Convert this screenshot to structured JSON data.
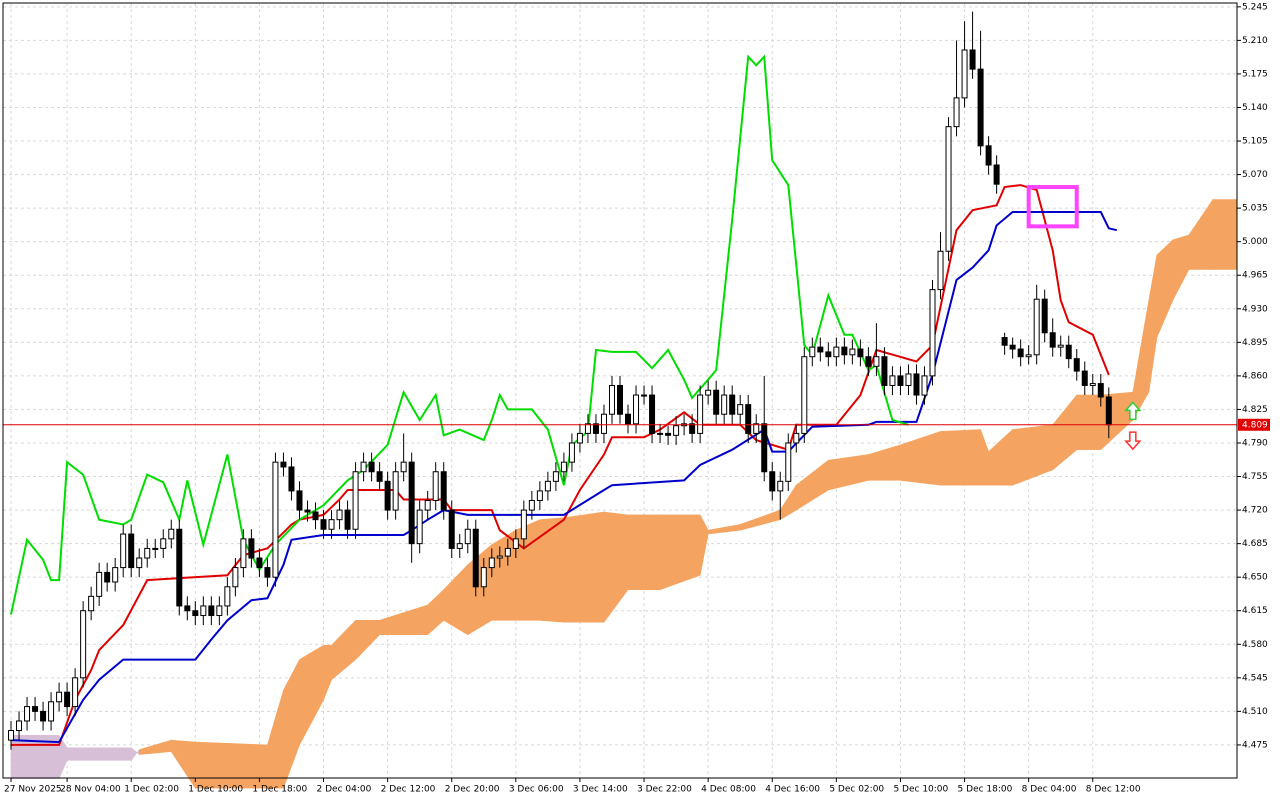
{
  "chart_data": {
    "type": "candlestick",
    "xlim": [
      -1,
      153
    ],
    "ylim": [
      4.4405,
      5.249
    ],
    "grid": true,
    "yticks": [
      5.245,
      {
        "value": 5.21,
        "label": "5.210"
      },
      5.175,
      {
        "value": 5.14,
        "label": "5.140"
      },
      5.105,
      {
        "value": 5.07,
        "label": "5.070"
      },
      5.035,
      {
        "value": 5,
        "label": "5.000"
      },
      4.965,
      {
        "value": 4.93,
        "label": "4.930"
      },
      4.895,
      {
        "value": 4.86,
        "label": "4.860"
      },
      4.825,
      {
        "value": 4.79,
        "label": "4.790"
      },
      4.755,
      {
        "value": 4.72,
        "label": "4.720"
      },
      4.685,
      {
        "value": 4.65,
        "label": "4.650"
      },
      4.615,
      {
        "value": 4.58,
        "label": "4.580"
      },
      4.545,
      {
        "value": 4.51,
        "label": "4.510"
      },
      4.475
    ],
    "xticks": [
      {
        "value": 0,
        "label": "27 Nov 2025"
      },
      {
        "value": 7,
        "label": "28 Nov 04:00"
      },
      {
        "value": 15,
        "label": "1 Dec 02:00"
      },
      {
        "value": 23,
        "label": "1 Dec 10:00"
      },
      {
        "value": 31,
        "label": "1 Dec 18:00"
      },
      {
        "value": 39,
        "label": "2 Dec 04:00"
      },
      {
        "value": 47,
        "label": "2 Dec 12:00"
      },
      {
        "value": 55,
        "label": "2 Dec 20:00"
      },
      {
        "value": 63,
        "label": "3 Dec 06:00"
      },
      {
        "value": 71,
        "label": "3 Dec 14:00"
      },
      {
        "value": 79,
        "label": "3 Dec 22:00"
      },
      {
        "value": 87,
        "label": "4 Dec 08:00"
      },
      {
        "value": 95,
        "label": "4 Dec 16:00"
      },
      {
        "value": 103,
        "label": "5 Dec 02:00"
      },
      {
        "value": 111,
        "label": "5 Dec 10:00"
      },
      {
        "value": 119,
        "label": "5 Dec 18:00"
      },
      {
        "value": 127,
        "label": "8 Dec 04:00"
      },
      {
        "value": 135,
        "label": "8 Dec 12:00"
      }
    ],
    "bull_color": "#ffffff",
    "bear_color": "#000000",
    "open": [
      4.48,
      4.49,
      4.5,
      4.515,
      4.51,
      4.5,
      4.52,
      4.53,
      4.515,
      4.545,
      4.615,
      4.63,
      4.655,
      4.645,
      4.66,
      4.695,
      4.66,
      4.67,
      4.68,
      4.68,
      4.69,
      4.7,
      4.62,
      4.615,
      4.61,
      4.62,
      4.61,
      4.62,
      4.64,
      4.66,
      4.69,
      4.67,
      4.66,
      4.65,
      4.77,
      4.765,
      4.74,
      4.72,
      4.718,
      4.71,
      4.7,
      4.71,
      4.72,
      4.7,
      4.76,
      4.77,
      4.76,
      4.75,
      4.72,
      4.76,
      4.77,
      4.685,
      4.72,
      4.73,
      4.76,
      4.72,
      4.68,
      4.685,
      4.7,
      4.64,
      4.66,
      4.67,
      4.672,
      4.68,
      4.69,
      4.72,
      4.73,
      4.74,
      4.75,
      4.76,
      4.77,
      4.79,
      4.8,
      4.81,
      4.8,
      4.82,
      4.85,
      4.82,
      4.81,
      4.84,
      4.84,
      4.8,
      4.8,
      4.798,
      4.808,
      4.81,
      4.8,
      4.84,
      4.845,
      4.82,
      4.84,
      4.82,
      4.83,
      4.8,
      4.81,
      4.76,
      4.74,
      4.75,
      4.79,
      4.8,
      4.88,
      4.89,
      4.885,
      4.88,
      4.89,
      4.882,
      4.888,
      4.88,
      4.87,
      4.88,
      4.85,
      4.86,
      4.85,
      4.862,
      4.84,
      4.86,
      4.95,
      4.99,
      5.12,
      5.15,
      5.2,
      5.18,
      5.1,
      5.08,
      4.9,
      4.892,
      4.888,
      4.88,
      4.882,
      4.94,
      4.905,
      4.89,
      4.892,
      4.878,
      4.865,
      4.85,
      4.852,
      4.838
    ],
    "high": [
      4.5,
      4.51,
      4.525,
      4.525,
      4.52,
      4.53,
      4.54,
      4.54,
      4.555,
      4.625,
      4.64,
      4.665,
      4.665,
      4.67,
      4.705,
      4.705,
      4.68,
      4.69,
      4.69,
      4.7,
      4.71,
      4.71,
      4.63,
      4.625,
      4.63,
      4.63,
      4.63,
      4.65,
      4.67,
      4.7,
      4.7,
      4.68,
      4.67,
      4.78,
      4.78,
      4.775,
      4.75,
      4.73,
      4.728,
      4.72,
      4.72,
      4.73,
      4.73,
      4.77,
      4.78,
      4.78,
      4.77,
      4.76,
      4.77,
      4.8,
      4.78,
      4.73,
      4.74,
      4.77,
      4.77,
      4.73,
      4.695,
      4.71,
      4.71,
      4.67,
      4.68,
      4.682,
      4.69,
      4.7,
      4.73,
      4.74,
      4.75,
      4.76,
      4.77,
      4.78,
      4.8,
      4.81,
      4.82,
      4.82,
      4.83,
      4.86,
      4.86,
      4.83,
      4.85,
      4.85,
      4.85,
      4.81,
      4.808,
      4.818,
      4.82,
      4.82,
      4.85,
      4.855,
      4.855,
      4.85,
      4.85,
      4.84,
      4.84,
      4.82,
      4.86,
      4.77,
      4.76,
      4.8,
      4.81,
      4.89,
      4.9,
      4.9,
      4.895,
      4.9,
      4.9,
      4.898,
      4.898,
      4.89,
      4.915,
      4.89,
      4.87,
      4.87,
      4.872,
      4.872,
      4.87,
      4.96,
      5.01,
      5.13,
      5.21,
      5.23,
      5.24,
      5.22,
      5.11,
      5.09,
      4.905,
      4.9,
      4.898,
      4.892,
      4.955,
      4.95,
      4.92,
      4.902,
      4.902,
      4.888,
      4.875,
      4.862,
      4.862,
      4.848
    ],
    "low": [
      4.47,
      4.48,
      4.49,
      4.5,
      4.49,
      4.49,
      4.51,
      4.505,
      4.505,
      4.535,
      4.605,
      4.62,
      4.635,
      4.635,
      4.65,
      4.65,
      4.65,
      4.66,
      4.67,
      4.67,
      4.68,
      4.61,
      4.605,
      4.6,
      4.6,
      4.6,
      4.6,
      4.61,
      4.63,
      4.65,
      4.66,
      4.65,
      4.64,
      4.64,
      4.755,
      4.73,
      4.71,
      4.708,
      4.7,
      4.69,
      4.69,
      4.7,
      4.69,
      4.69,
      4.75,
      4.75,
      4.74,
      4.71,
      4.71,
      4.75,
      4.665,
      4.675,
      4.71,
      4.72,
      4.71,
      4.67,
      4.67,
      4.675,
      4.63,
      4.63,
      4.65,
      4.66,
      4.662,
      4.67,
      4.68,
      4.71,
      4.72,
      4.73,
      4.74,
      4.75,
      4.76,
      4.78,
      4.79,
      4.79,
      4.79,
      4.81,
      4.81,
      4.8,
      4.8,
      4.83,
      4.79,
      4.79,
      4.788,
      4.788,
      4.798,
      4.79,
      4.79,
      4.83,
      4.81,
      4.81,
      4.81,
      4.81,
      4.79,
      4.79,
      4.75,
      4.73,
      4.71,
      4.74,
      4.78,
      4.79,
      4.87,
      4.875,
      4.87,
      4.87,
      4.872,
      4.872,
      4.87,
      4.86,
      4.86,
      4.84,
      4.84,
      4.84,
      4.84,
      4.83,
      4.83,
      4.85,
      4.94,
      4.98,
      5.11,
      5.14,
      5.17,
      5.09,
      5.07,
      5.05,
      4.882,
      4.878,
      4.87,
      4.872,
      4.872,
      4.895,
      4.88,
      4.88,
      4.868,
      4.855,
      4.84,
      4.84,
      4.828,
      4.795
    ],
    "close": [
      4.49,
      4.5,
      4.515,
      4.51,
      4.5,
      4.52,
      4.53,
      4.515,
      4.545,
      4.615,
      4.63,
      4.655,
      4.645,
      4.66,
      4.695,
      4.66,
      4.67,
      4.68,
      4.68,
      4.69,
      4.7,
      4.62,
      4.615,
      4.61,
      4.62,
      4.61,
      4.62,
      4.64,
      4.66,
      4.69,
      4.67,
      4.66,
      4.65,
      4.77,
      4.765,
      4.74,
      4.72,
      4.718,
      4.71,
      4.7,
      4.71,
      4.72,
      4.7,
      4.76,
      4.77,
      4.76,
      4.75,
      4.72,
      4.76,
      4.77,
      4.685,
      4.72,
      4.73,
      4.76,
      4.72,
      4.68,
      4.685,
      4.7,
      4.64,
      4.66,
      4.67,
      4.672,
      4.68,
      4.69,
      4.72,
      4.73,
      4.74,
      4.75,
      4.76,
      4.77,
      4.79,
      4.8,
      4.81,
      4.8,
      4.82,
      4.85,
      4.82,
      4.81,
      4.84,
      4.84,
      4.8,
      4.8,
      4.798,
      4.808,
      4.81,
      4.8,
      4.84,
      4.845,
      4.82,
      4.84,
      4.82,
      4.83,
      4.8,
      4.81,
      4.76,
      4.74,
      4.75,
      4.79,
      4.8,
      4.88,
      4.89,
      4.885,
      4.88,
      4.89,
      4.882,
      4.888,
      4.88,
      4.87,
      4.88,
      4.85,
      4.86,
      4.85,
      4.862,
      4.84,
      4.86,
      4.95,
      4.99,
      5.12,
      5.15,
      5.2,
      5.18,
      5.1,
      5.08,
      5.06,
      4.892,
      4.888,
      4.88,
      4.882,
      4.94,
      4.905,
      4.89,
      4.892,
      4.878,
      4.865,
      4.85,
      4.852,
      4.838,
      4.809
    ],
    "series": [
      {
        "color": "#e00000",
        "x": [
          0,
          6,
          8,
          10,
          11,
          14,
          17,
          21,
          27,
          29,
          32,
          35,
          36,
          39,
          41,
          42,
          48,
          49,
          54,
          55,
          60,
          61,
          64,
          69,
          71,
          74,
          75,
          79,
          81,
          84,
          86,
          91,
          93,
          97,
          98,
          103,
          106,
          108,
          113,
          115,
          118,
          120,
          123,
          124,
          126,
          128,
          130,
          131,
          132,
          135,
          137
        ],
        "values": [
          4.475,
          4.475,
          4.522,
          4.553,
          4.574,
          4.6,
          4.647,
          4.649,
          4.652,
          4.673,
          4.68,
          4.705,
          4.71,
          4.715,
          4.731,
          4.741,
          4.741,
          4.731,
          4.731,
          4.72,
          4.72,
          4.699,
          4.68,
          4.71,
          4.741,
          4.778,
          4.796,
          4.796,
          4.804,
          4.822,
          4.809,
          4.809,
          4.793,
          4.783,
          4.809,
          4.809,
          4.84,
          4.887,
          4.875,
          4.892,
          5.012,
          5.033,
          5.038,
          5.057,
          5.059,
          5.054,
          4.991,
          4.939,
          4.916,
          4.903,
          4.861
        ]
      },
      {
        "color": "#0000cc",
        "x": [
          0,
          6,
          9,
          11,
          14,
          23,
          25,
          27,
          30,
          32,
          34,
          35,
          39,
          49,
          50,
          52,
          54,
          57,
          69,
          74,
          75,
          84,
          86,
          90,
          94,
          95,
          97,
          100,
          107,
          108,
          113,
          115,
          118,
          120,
          122,
          123,
          125,
          136,
          137,
          138
        ],
        "values": [
          4.48,
          4.478,
          4.522,
          4.543,
          4.564,
          4.564,
          4.585,
          4.605,
          4.626,
          4.628,
          4.663,
          4.689,
          4.694,
          4.694,
          4.699,
          4.71,
          4.72,
          4.715,
          4.715,
          4.741,
          4.746,
          4.751,
          4.767,
          4.783,
          4.804,
          4.781,
          4.781,
          4.807,
          4.809,
          4.812,
          4.812,
          4.861,
          4.96,
          4.973,
          4.991,
          5.017,
          5.031,
          5.031,
          5.014,
          5.012
        ]
      },
      {
        "color": "#00dd00",
        "x": [
          0,
          2,
          4,
          5,
          6,
          7,
          9,
          11,
          14,
          15,
          17,
          19,
          21,
          22,
          24,
          27,
          29,
          31,
          33,
          36,
          39,
          42,
          44,
          47,
          49,
          51,
          53,
          54,
          56,
          59,
          60,
          61,
          62,
          65,
          67,
          69,
          70,
          72,
          73,
          75,
          78,
          80,
          82,
          84,
          85,
          87,
          88,
          90,
          92,
          93,
          94,
          95,
          97,
          99,
          100,
          102,
          104,
          105,
          107,
          108,
          110,
          112
        ],
        "values": [
          4.611,
          4.689,
          4.668,
          4.647,
          4.647,
          4.77,
          4.757,
          4.71,
          4.705,
          4.71,
          4.757,
          4.749,
          4.71,
          4.751,
          4.684,
          4.778,
          4.689,
          4.658,
          4.684,
          4.71,
          4.725,
          4.751,
          4.762,
          4.788,
          4.843,
          4.814,
          4.84,
          4.798,
          4.804,
          4.793,
          4.814,
          4.84,
          4.825,
          4.825,
          4.804,
          4.746,
          4.788,
          4.802,
          4.887,
          4.885,
          4.885,
          4.868,
          4.887,
          4.856,
          4.837,
          4.856,
          4.866,
          5.023,
          5.193,
          5.184,
          5.193,
          5.085,
          5.059,
          4.892,
          4.882,
          4.944,
          4.903,
          4.903,
          4.866,
          4.871,
          4.814,
          4.809
        ]
      }
    ],
    "cloud": {
      "bull_color": "#f4a460",
      "bear_color": "#d8bfd8",
      "x": [
        0,
        6,
        7,
        15,
        16,
        20,
        23,
        32,
        34,
        36,
        39,
        40,
        43,
        46,
        52,
        54,
        57,
        60,
        63,
        66,
        69,
        74,
        77,
        81,
        86,
        87,
        91,
        96,
        98,
        102,
        107,
        111,
        116,
        121,
        122,
        125,
        130,
        133,
        136,
        140,
        142,
        143,
        145,
        147,
        150,
        153
      ],
      "span_a": [
        4.44,
        4.44,
        4.459,
        4.459,
        4.47,
        4.48,
        4.478,
        4.475,
        4.532,
        4.564,
        4.579,
        4.579,
        4.605,
        4.605,
        4.621,
        4.637,
        4.663,
        4.684,
        4.699,
        4.71,
        4.712,
        4.718,
        4.715,
        4.715,
        4.715,
        4.699,
        4.705,
        4.72,
        4.746,
        4.772,
        4.778,
        4.788,
        4.802,
        4.804,
        4.781,
        4.804,
        4.809,
        4.84,
        4.84,
        4.843,
        4.939,
        4.986,
        5.002,
        5.007,
        5.044,
        5.044
      ],
      "span_b": [
        4.485,
        4.485,
        4.472,
        4.472,
        4.465,
        4.468,
        4.43,
        4.43,
        4.43,
        4.475,
        4.522,
        4.543,
        4.564,
        4.59,
        4.59,
        4.605,
        4.59,
        4.605,
        4.605,
        4.605,
        4.603,
        4.603,
        4.637,
        4.637,
        4.652,
        4.695,
        4.699,
        4.71,
        4.72,
        4.741,
        4.751,
        4.751,
        4.746,
        4.746,
        4.746,
        4.746,
        4.762,
        4.783,
        4.783,
        4.814,
        4.843,
        4.9,
        4.939,
        4.971,
        4.971,
        4.971
      ]
    },
    "last_price": 4.809,
    "last_price_color": "#e00000",
    "highlight": {
      "x": [
        127,
        133
      ],
      "y": [
        5.016,
        5.057
      ],
      "color": "#ff44ff"
    },
    "arrows": [
      {
        "x": 140,
        "price": 4.823,
        "direction": "up",
        "color": "#32cd32"
      },
      {
        "x": 140,
        "price": 4.793,
        "direction": "down",
        "color": "#ff3030"
      }
    ]
  }
}
